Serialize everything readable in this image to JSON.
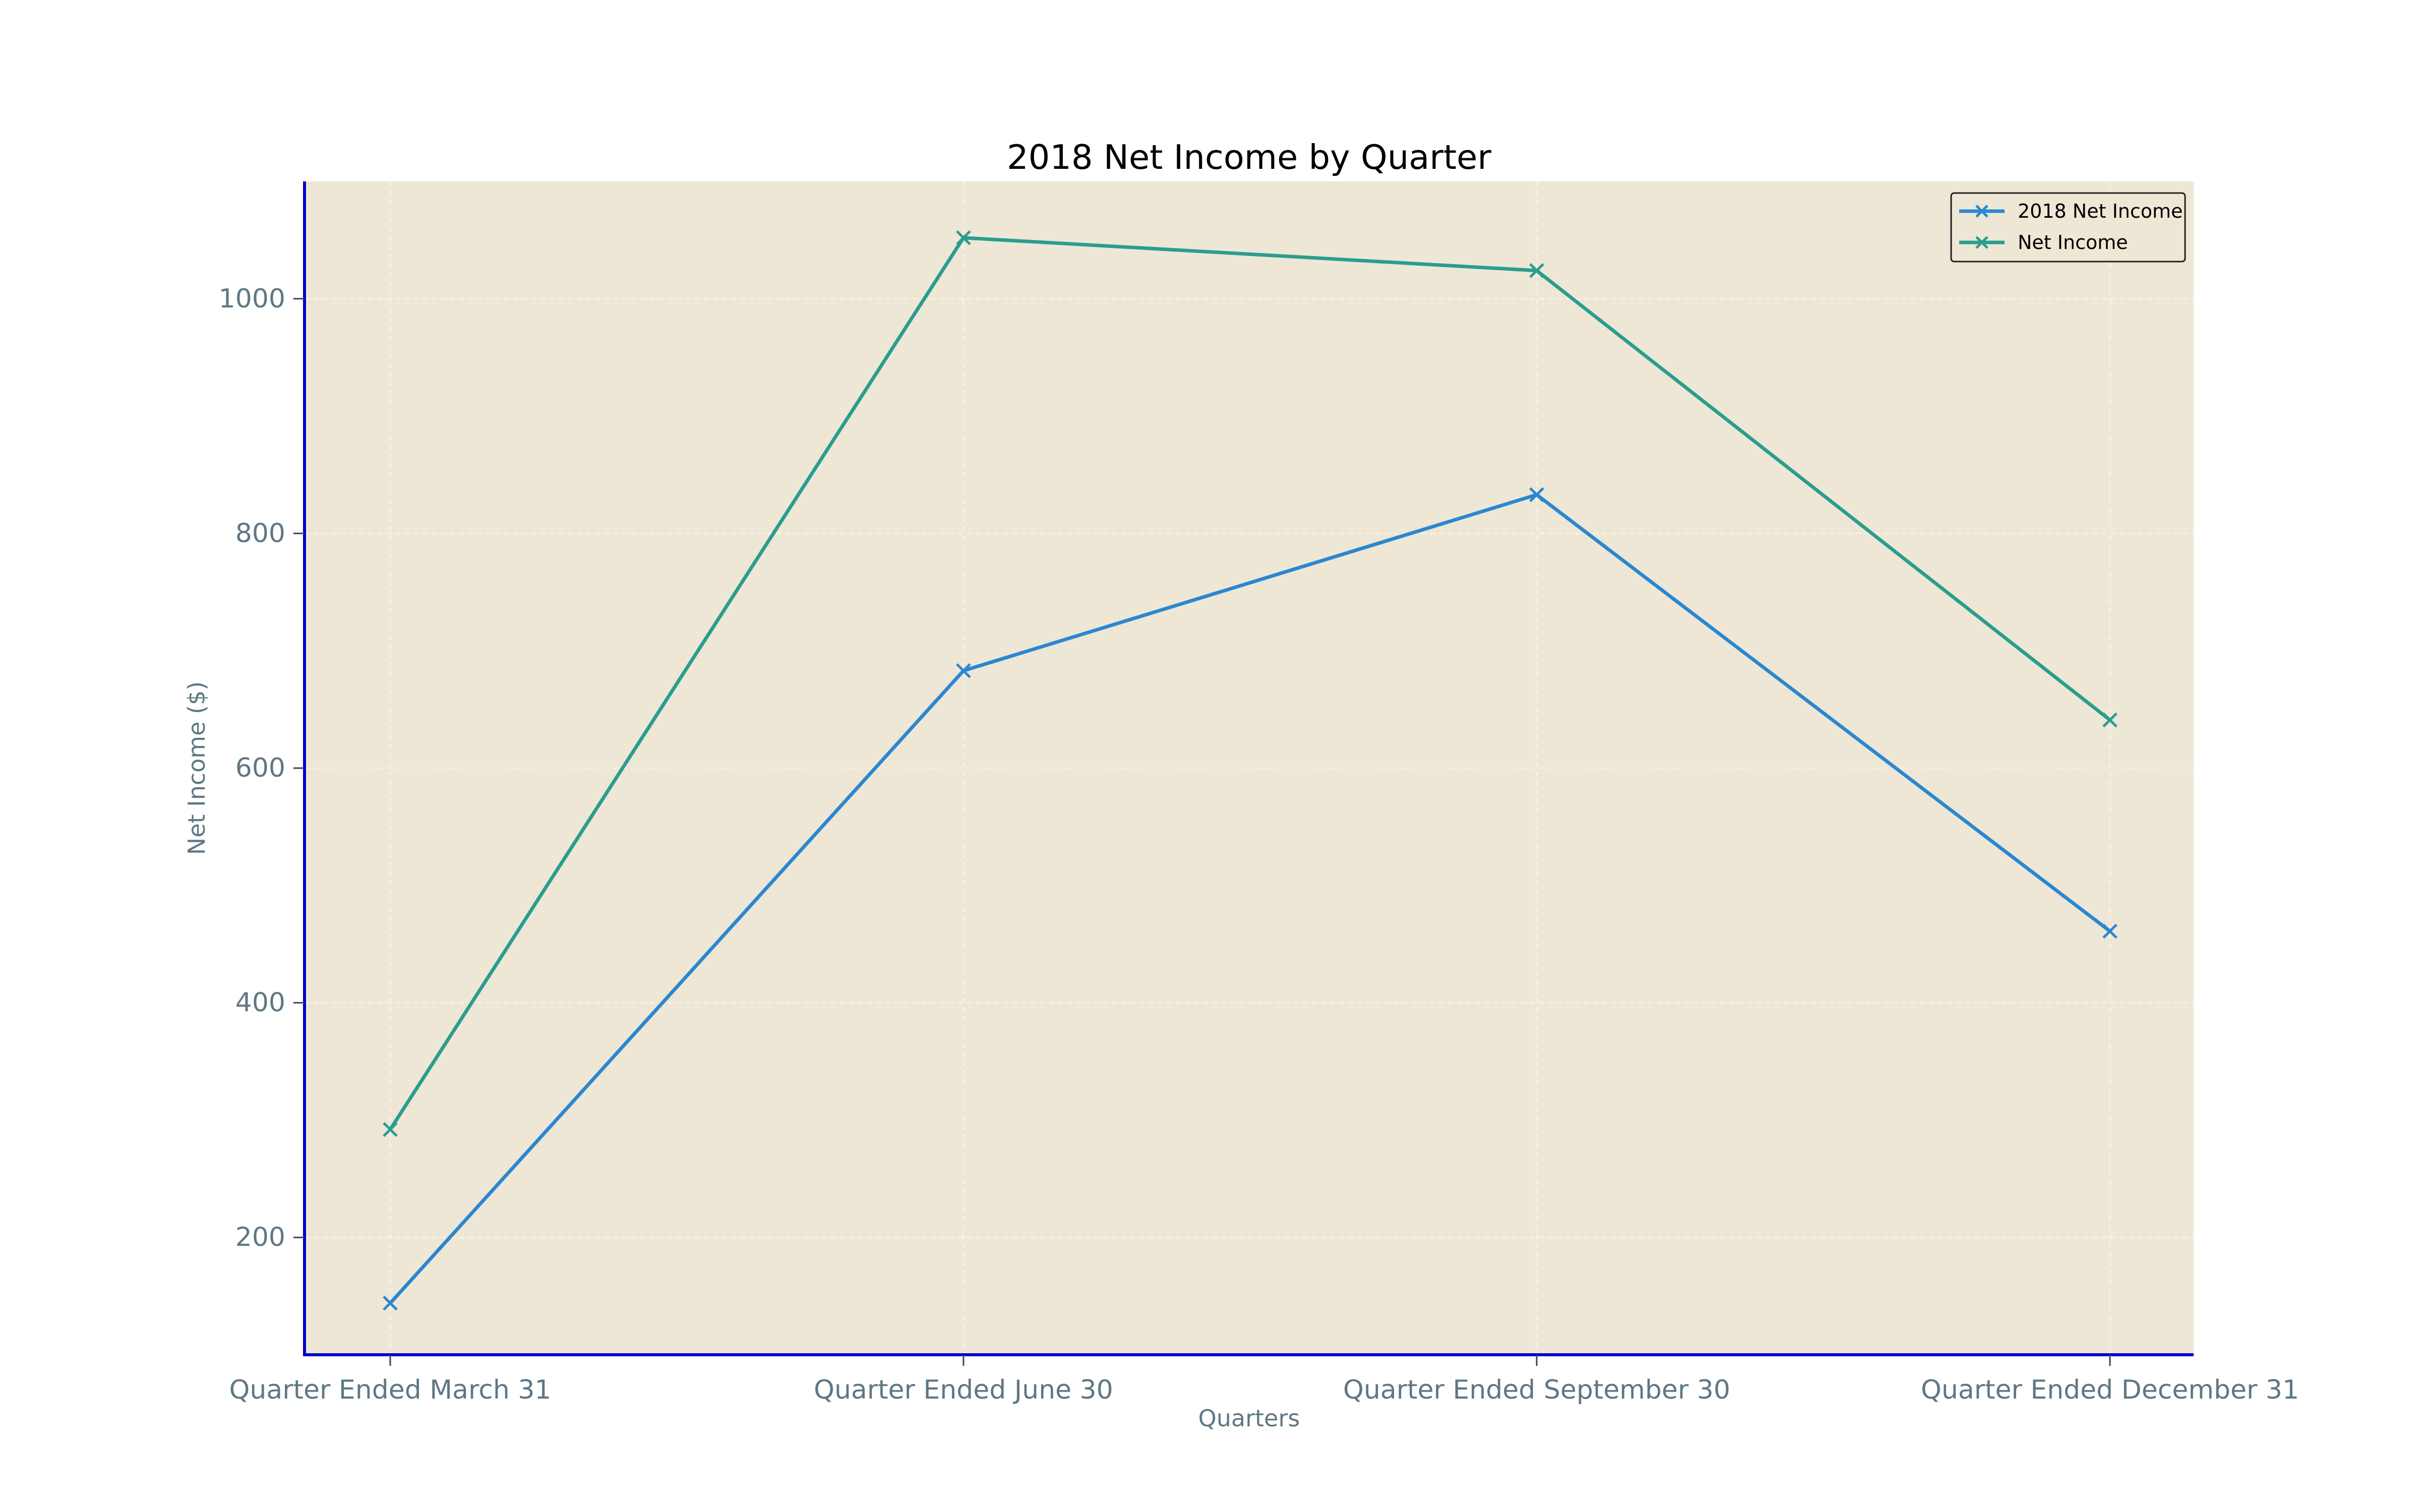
{
  "chart_data": {
    "type": "line",
    "title": "2018 Net Income by Quarter",
    "xlabel": "Quarters",
    "ylabel": "Net Income ($)",
    "categories": [
      "Quarter Ended March 31",
      "Quarter Ended June 30",
      "Quarter Ended September 30",
      "Quarter Ended December 31"
    ],
    "series": [
      {
        "name": "2018 Net Income",
        "values": [
          144,
          683,
          833,
          461
        ],
        "color": "#2b87d1",
        "marker": "x"
      },
      {
        "name": "Net Income",
        "values": [
          292,
          1052,
          1024,
          641
        ],
        "color": "#2a9d8f",
        "marker": "x"
      }
    ],
    "ylim": [
      100,
      1100
    ],
    "yticks": [
      200,
      400,
      600,
      800,
      1000
    ],
    "grid": true,
    "legend_position": "top-right",
    "plot_background": "#eee7d5",
    "axis_color": "#0000cc"
  }
}
